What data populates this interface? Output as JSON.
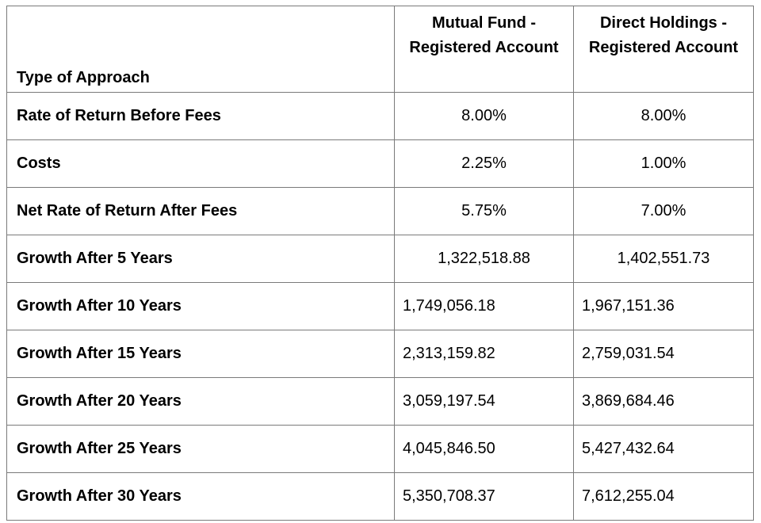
{
  "table": {
    "header": {
      "approach": "Type of Approach",
      "col1": "Mutual Fund - Registered Account",
      "col2": "Direct Holdings - Registered Account"
    },
    "rows": [
      {
        "label": "Rate of Return Before Fees",
        "col1": "8.00%",
        "col2": "8.00%"
      },
      {
        "label": "Costs",
        "col1": "2.25%",
        "col2": "1.00%"
      },
      {
        "label": "Net Rate of Return After Fees",
        "col1": "5.75%",
        "col2": "7.00%"
      },
      {
        "label": "Growth After 5 Years",
        "col1": "1,322,518.88",
        "col2": "1,402,551.73"
      },
      {
        "label": "Growth After 10 Years",
        "col1": "1,749,056.18",
        "col2": "1,967,151.36"
      },
      {
        "label": "Growth After 15 Years",
        "col1": "2,313,159.82",
        "col2": "2,759,031.54"
      },
      {
        "label": "Growth After 20 Years",
        "col1": "3,059,197.54",
        "col2": "3,869,684.46"
      },
      {
        "label": "Growth After 25 Years",
        "col1": "4,045,846.50",
        "col2": "5,427,432.64"
      },
      {
        "label": "Growth After 30 Years",
        "col1": "5,350,708.37",
        "col2": "7,612,255.04"
      }
    ]
  }
}
